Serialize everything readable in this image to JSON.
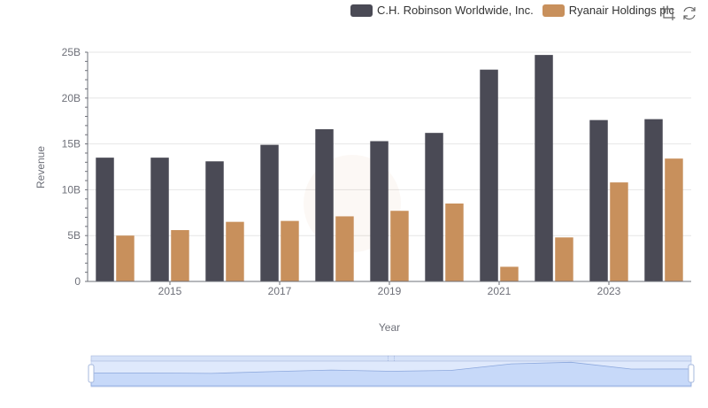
{
  "colors": {
    "series_0": "#4a4a55",
    "series_1": "#c8905c",
    "grid": "#e6e6e6",
    "axis": "#6e7079",
    "zoom_fill": "#d6e2f8",
    "zoom_border": "#a6b8dd",
    "zoom_line": "#8ea6d6"
  },
  "toolbox": {
    "zoom_icon": "dataZoom-icon",
    "restore_icon": "restore-icon"
  },
  "chart_data": {
    "type": "bar",
    "title": "",
    "xlabel": "Year",
    "ylabel": "Revenue",
    "categories": [
      "2014",
      "2015",
      "2016",
      "2017",
      "2018",
      "2019",
      "2020",
      "2021",
      "2022",
      "2023",
      "2024"
    ],
    "x_tick_labels": [
      "2015",
      "2017",
      "2019",
      "2021",
      "2023"
    ],
    "y_tick_labels": [
      "0",
      "5B",
      "10B",
      "15B",
      "20B",
      "25B"
    ],
    "ylim": [
      0,
      25
    ],
    "y_unit": "B",
    "grid": true,
    "legend_position": "top-right",
    "series": [
      {
        "name": "C.H. Robinson Worldwide, Inc.",
        "values": [
          13.5,
          13.5,
          13.1,
          14.9,
          16.6,
          15.3,
          16.2,
          23.1,
          24.7,
          17.6,
          17.7
        ]
      },
      {
        "name": "Ryanair Holdings plc",
        "values": [
          5.0,
          5.6,
          6.5,
          6.6,
          7.1,
          7.7,
          8.5,
          1.6,
          4.8,
          10.8,
          13.4
        ]
      }
    ]
  }
}
